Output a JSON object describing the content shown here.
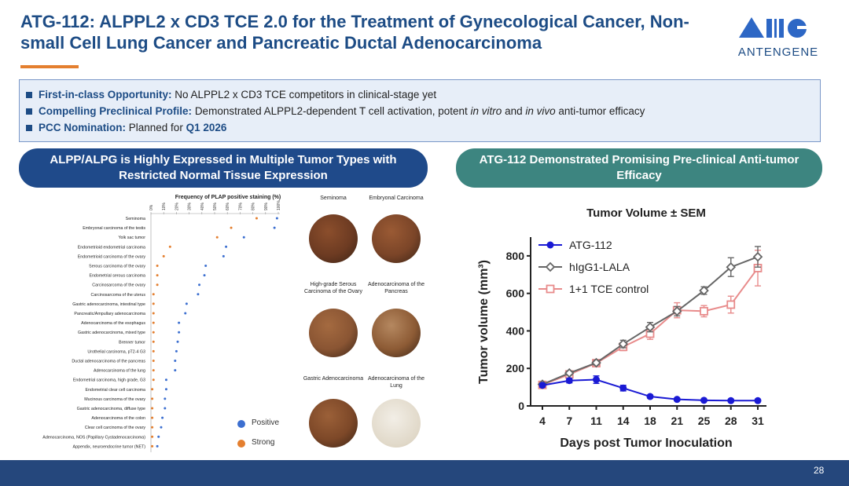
{
  "header": {
    "title_line1": "ATG-112: ALPPL2 x CD3 TCE 2.0 for the Treatment of Gynecological Cancer, Non-",
    "title_line2": "small Cell Lung Cancer and Pancreatic Ductal Adenocarcinoma",
    "logo_text": "ANTENGENE"
  },
  "bullets": [
    {
      "label": "First-in-class Opportunity:",
      "text": "No ALPPL2 x CD3 TCE competitors in clinical-stage yet"
    },
    {
      "label": "Compelling Preclinical Profile:",
      "text_a": "Demonstrated ALPPL2-dependent T cell activation, potent ",
      "italic1": "in vitro",
      "text_b": " and ",
      "italic2": "in vivo",
      "text_c": " anti-tumor efficacy"
    },
    {
      "label": "PCC Nomination:",
      "text": "Planned for ",
      "bold_tail": "Q1 2026"
    }
  ],
  "left_panel": {
    "banner": "ALPP/ALPG is Highly Expressed in Multiple Tumor Types with Restricted Normal Tissue Expression"
  },
  "right_panel": {
    "banner": "ATG-112 Demonstrated Promising Pre-clinical Anti-tumor Efficacy"
  },
  "images": [
    {
      "label": "Seminoma"
    },
    {
      "label": "Embryonal Carcinoma"
    },
    {
      "label": "High-grade Serous Carcinoma of the Ovary"
    },
    {
      "label": "Adenocarcinoma of the Pancreas"
    },
    {
      "label": "Gastric Adenocarcinoma"
    },
    {
      "label": "Adenocarcinoma of the Lung"
    }
  ],
  "footer": {
    "page": "28"
  },
  "colors": {
    "navy": "#1f4a8a",
    "teal": "#3d8580",
    "orange": "#e47f2f",
    "blue_dot": "#3c6fd0",
    "stain_brown": "#7a4a2e"
  },
  "chart_data": [
    {
      "type": "scatter",
      "title": "Frequency of PLAP positive staining (%)",
      "xlim": [
        0,
        100
      ],
      "xticks": [
        0,
        10,
        20,
        30,
        40,
        50,
        60,
        70,
        80,
        90,
        100
      ],
      "xtick_labels": [
        "0%",
        "10%",
        "20%",
        "30%",
        "40%",
        "50%",
        "60%",
        "70%",
        "80%",
        "90%",
        "100%"
      ],
      "categories": [
        "Seminoma",
        "Embryonal carcinoma of the testis",
        "Yolk sac tumor",
        "Endometrioid endometrial carcinoma",
        "Endometrioid carcinoma of the ovary",
        "Serous carcinoma of the ovary",
        "Endometrial serous carcinoma",
        "Carcinosarcoma of the ovary",
        "Carcinosarcoma of the uterus",
        "Gastric adenocarcinoma, intestinal type",
        "Pancreatic/Ampullary adenocarcinoma",
        "Adenocarcinoma of the esophagus",
        "Gastric adenocarcinoma, mixed type",
        "Brenner tumor",
        "Urothelial carcinoma, pT2-4 G3",
        "Ductal adenocarcinoma of the pancreas",
        "Adenocarcinoma of the lung",
        "Endometrial carcinoma, high grade, G3",
        "Endometrial clear cell carcinoma",
        "Mucinous carcinoma of the ovary",
        "Gastric adenocarcinoma, diffuse type",
        "Adenocarcinoma of the colon",
        "Clear cell carcinoma of the ovary",
        "Adenocarcinoma, NOS (Papillary Cystadenocarcinoma)",
        "Appendix, neuroendocrine tumor (NET)"
      ],
      "series": [
        {
          "name": "Positive",
          "color": "#3c6fd0",
          "values": [
            99,
            97,
            73,
            59,
            57,
            43,
            42,
            38,
            37,
            28,
            27,
            22,
            22,
            21,
            20,
            19,
            19,
            12,
            12,
            11,
            11,
            9,
            8,
            6,
            5
          ]
        },
        {
          "name": "Strong",
          "color": "#e47f2f",
          "values": [
            83,
            63,
            52,
            15,
            10,
            5,
            5,
            5,
            2,
            2,
            2,
            2,
            2,
            2,
            2,
            2,
            2,
            2,
            1,
            1,
            1,
            1,
            1,
            1,
            1
          ]
        }
      ],
      "legend": [
        "Positive",
        "Strong"
      ]
    },
    {
      "type": "line",
      "title": "Tumor Volume ± SEM",
      "xlabel": "Days post Tumor Inoculation",
      "ylabel": "Tumor volume (mm³)",
      "x": [
        4,
        7,
        11,
        14,
        18,
        21,
        25,
        28,
        31
      ],
      "ylim": [
        0,
        900
      ],
      "yticks": [
        0,
        200,
        400,
        600,
        800
      ],
      "series": [
        {
          "name": "ATG-112",
          "color": "#1a1ad4",
          "marker": "circle",
          "values": [
            110,
            135,
            140,
            95,
            50,
            35,
            30,
            28,
            28
          ],
          "err": [
            10,
            12,
            20,
            15,
            8,
            6,
            5,
            4,
            4
          ]
        },
        {
          "name": "hIgG1-LALA",
          "color": "#666666",
          "marker": "diamond",
          "values": [
            115,
            175,
            230,
            330,
            420,
            505,
            615,
            740,
            795
          ],
          "err": [
            8,
            10,
            12,
            20,
            25,
            25,
            20,
            50,
            55
          ]
        },
        {
          "name": "1+1 TCE control",
          "color": "#e88b8b",
          "marker": "square",
          "values": [
            112,
            168,
            228,
            315,
            385,
            510,
            505,
            540,
            735
          ],
          "err": [
            8,
            10,
            15,
            20,
            30,
            40,
            30,
            45,
            95
          ]
        }
      ],
      "legend": "top-left"
    }
  ]
}
